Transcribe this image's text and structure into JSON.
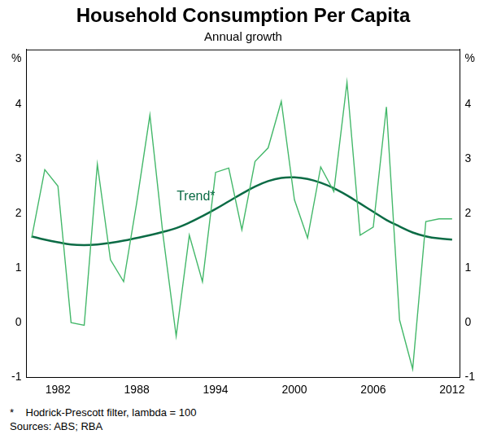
{
  "chart_data": {
    "type": "line",
    "title": "Household Consumption Per Capita",
    "subtitle": "Annual growth",
    "y_label": "%",
    "y2_label": "%",
    "x": [
      1980,
      1981,
      1982,
      1983,
      1984,
      1985,
      1986,
      1987,
      1988,
      1989,
      1990,
      1991,
      1992,
      1993,
      1994,
      1995,
      1996,
      1997,
      1998,
      1999,
      2000,
      2001,
      2002,
      2003,
      2004,
      2005,
      2006,
      2007,
      2008,
      2009,
      2010,
      2011,
      2012
    ],
    "series": [
      {
        "color": "#44b86a",
        "line_style": "solid",
        "values": [
          1.55,
          2.8,
          2.5,
          0.0,
          -0.05,
          2.9,
          1.15,
          0.75,
          2.2,
          3.8,
          1.6,
          -0.25,
          1.6,
          0.75,
          2.75,
          2.83,
          1.7,
          2.95,
          3.2,
          4.05,
          2.25,
          1.55,
          2.85,
          2.4,
          4.4,
          1.6,
          1.75,
          3.95,
          0.05,
          -0.85,
          1.85,
          1.9,
          1.9
        ]
      },
      {
        "color": "#0b6b45",
        "line_style": "solid",
        "values": [
          1.58,
          1.52,
          1.47,
          1.43,
          1.42,
          1.43,
          1.46,
          1.5,
          1.55,
          1.6,
          1.66,
          1.73,
          1.83,
          1.95,
          2.08,
          2.22,
          2.36,
          2.49,
          2.59,
          2.65,
          2.66,
          2.63,
          2.56,
          2.46,
          2.33,
          2.18,
          2.03,
          1.88,
          1.76,
          1.65,
          1.58,
          1.54,
          1.52
        ]
      }
    ],
    "annotations": [
      {
        "text": "Trend*",
        "x": 1992.5,
        "y": 2.3,
        "color": "#0b6b45"
      }
    ],
    "notes": [
      "*    Hodrick-Prescott filter, lambda = 100",
      "Sources: ABS; RBA"
    ],
    "xlim": [
      1979.6,
      2012.6
    ],
    "xticks": [
      1982,
      1988,
      1994,
      2000,
      2006,
      2012
    ],
    "ylim": [
      -1,
      5
    ],
    "yticks": [
      -1,
      0,
      1,
      2,
      3,
      4
    ],
    "y2lim": [
      -1,
      5
    ],
    "y2ticks": [
      -1,
      0,
      1,
      2,
      3,
      4
    ],
    "grid": false,
    "legend": false
  }
}
